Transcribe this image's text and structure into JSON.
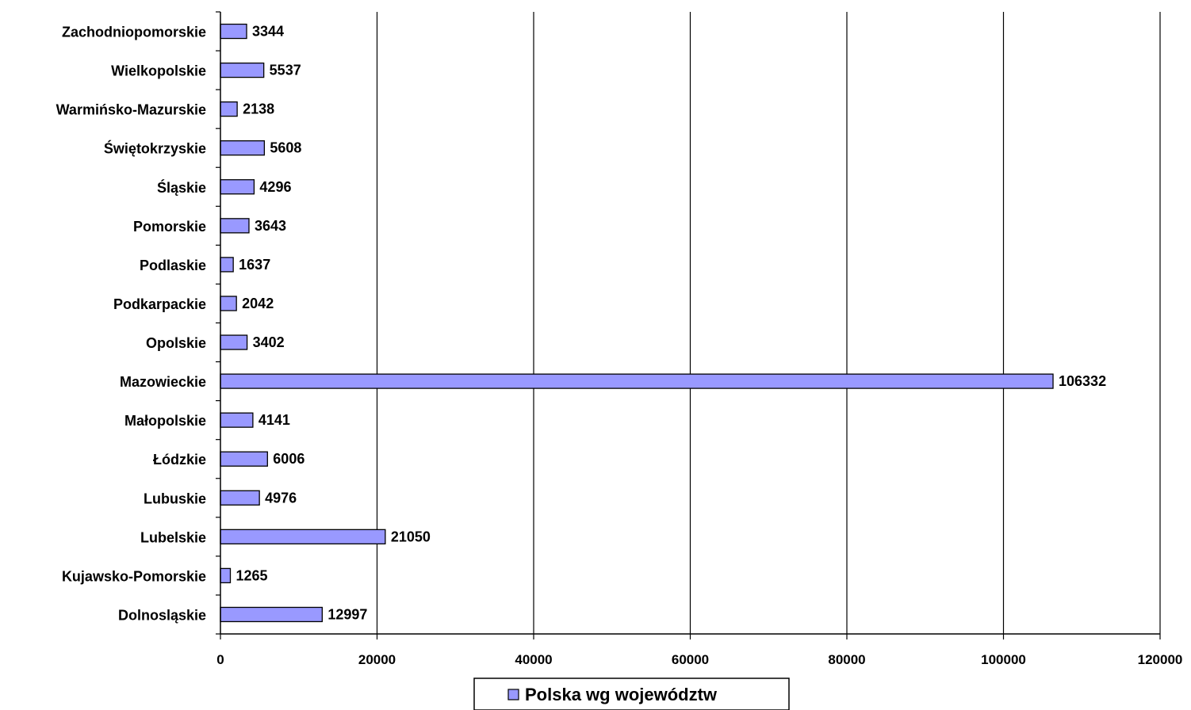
{
  "chart_data": {
    "type": "bar",
    "orientation": "horizontal",
    "categories": [
      "Dolnosląskie",
      "Kujawsko-Pomorskie",
      "Lubelskie",
      "Lubuskie",
      "Łódzkie",
      "Małopolskie",
      "Mazowieckie",
      "Opolskie",
      "Podkarpackie",
      "Podlaskie",
      "Pomorskie",
      "Śląskie",
      "Świętokrzyskie",
      "Warmińsko-Mazurskie",
      "Wielkopolskie",
      "Zachodniopomorskie"
    ],
    "series": [
      {
        "name": "Polska wg województw",
        "values": [
          12997,
          1265,
          21050,
          4976,
          6006,
          4141,
          106332,
          3402,
          2042,
          1637,
          3643,
          4296,
          5608,
          2138,
          5537,
          3344
        ],
        "color": "#9999ff"
      }
    ],
    "xlim": [
      0,
      120000
    ],
    "xticks": [
      0,
      20000,
      40000,
      60000,
      80000,
      100000,
      120000
    ],
    "grid": "vertical",
    "legend": "bottom",
    "bar_border_color": "#000000",
    "title": "",
    "xlabel": "",
    "ylabel": ""
  }
}
